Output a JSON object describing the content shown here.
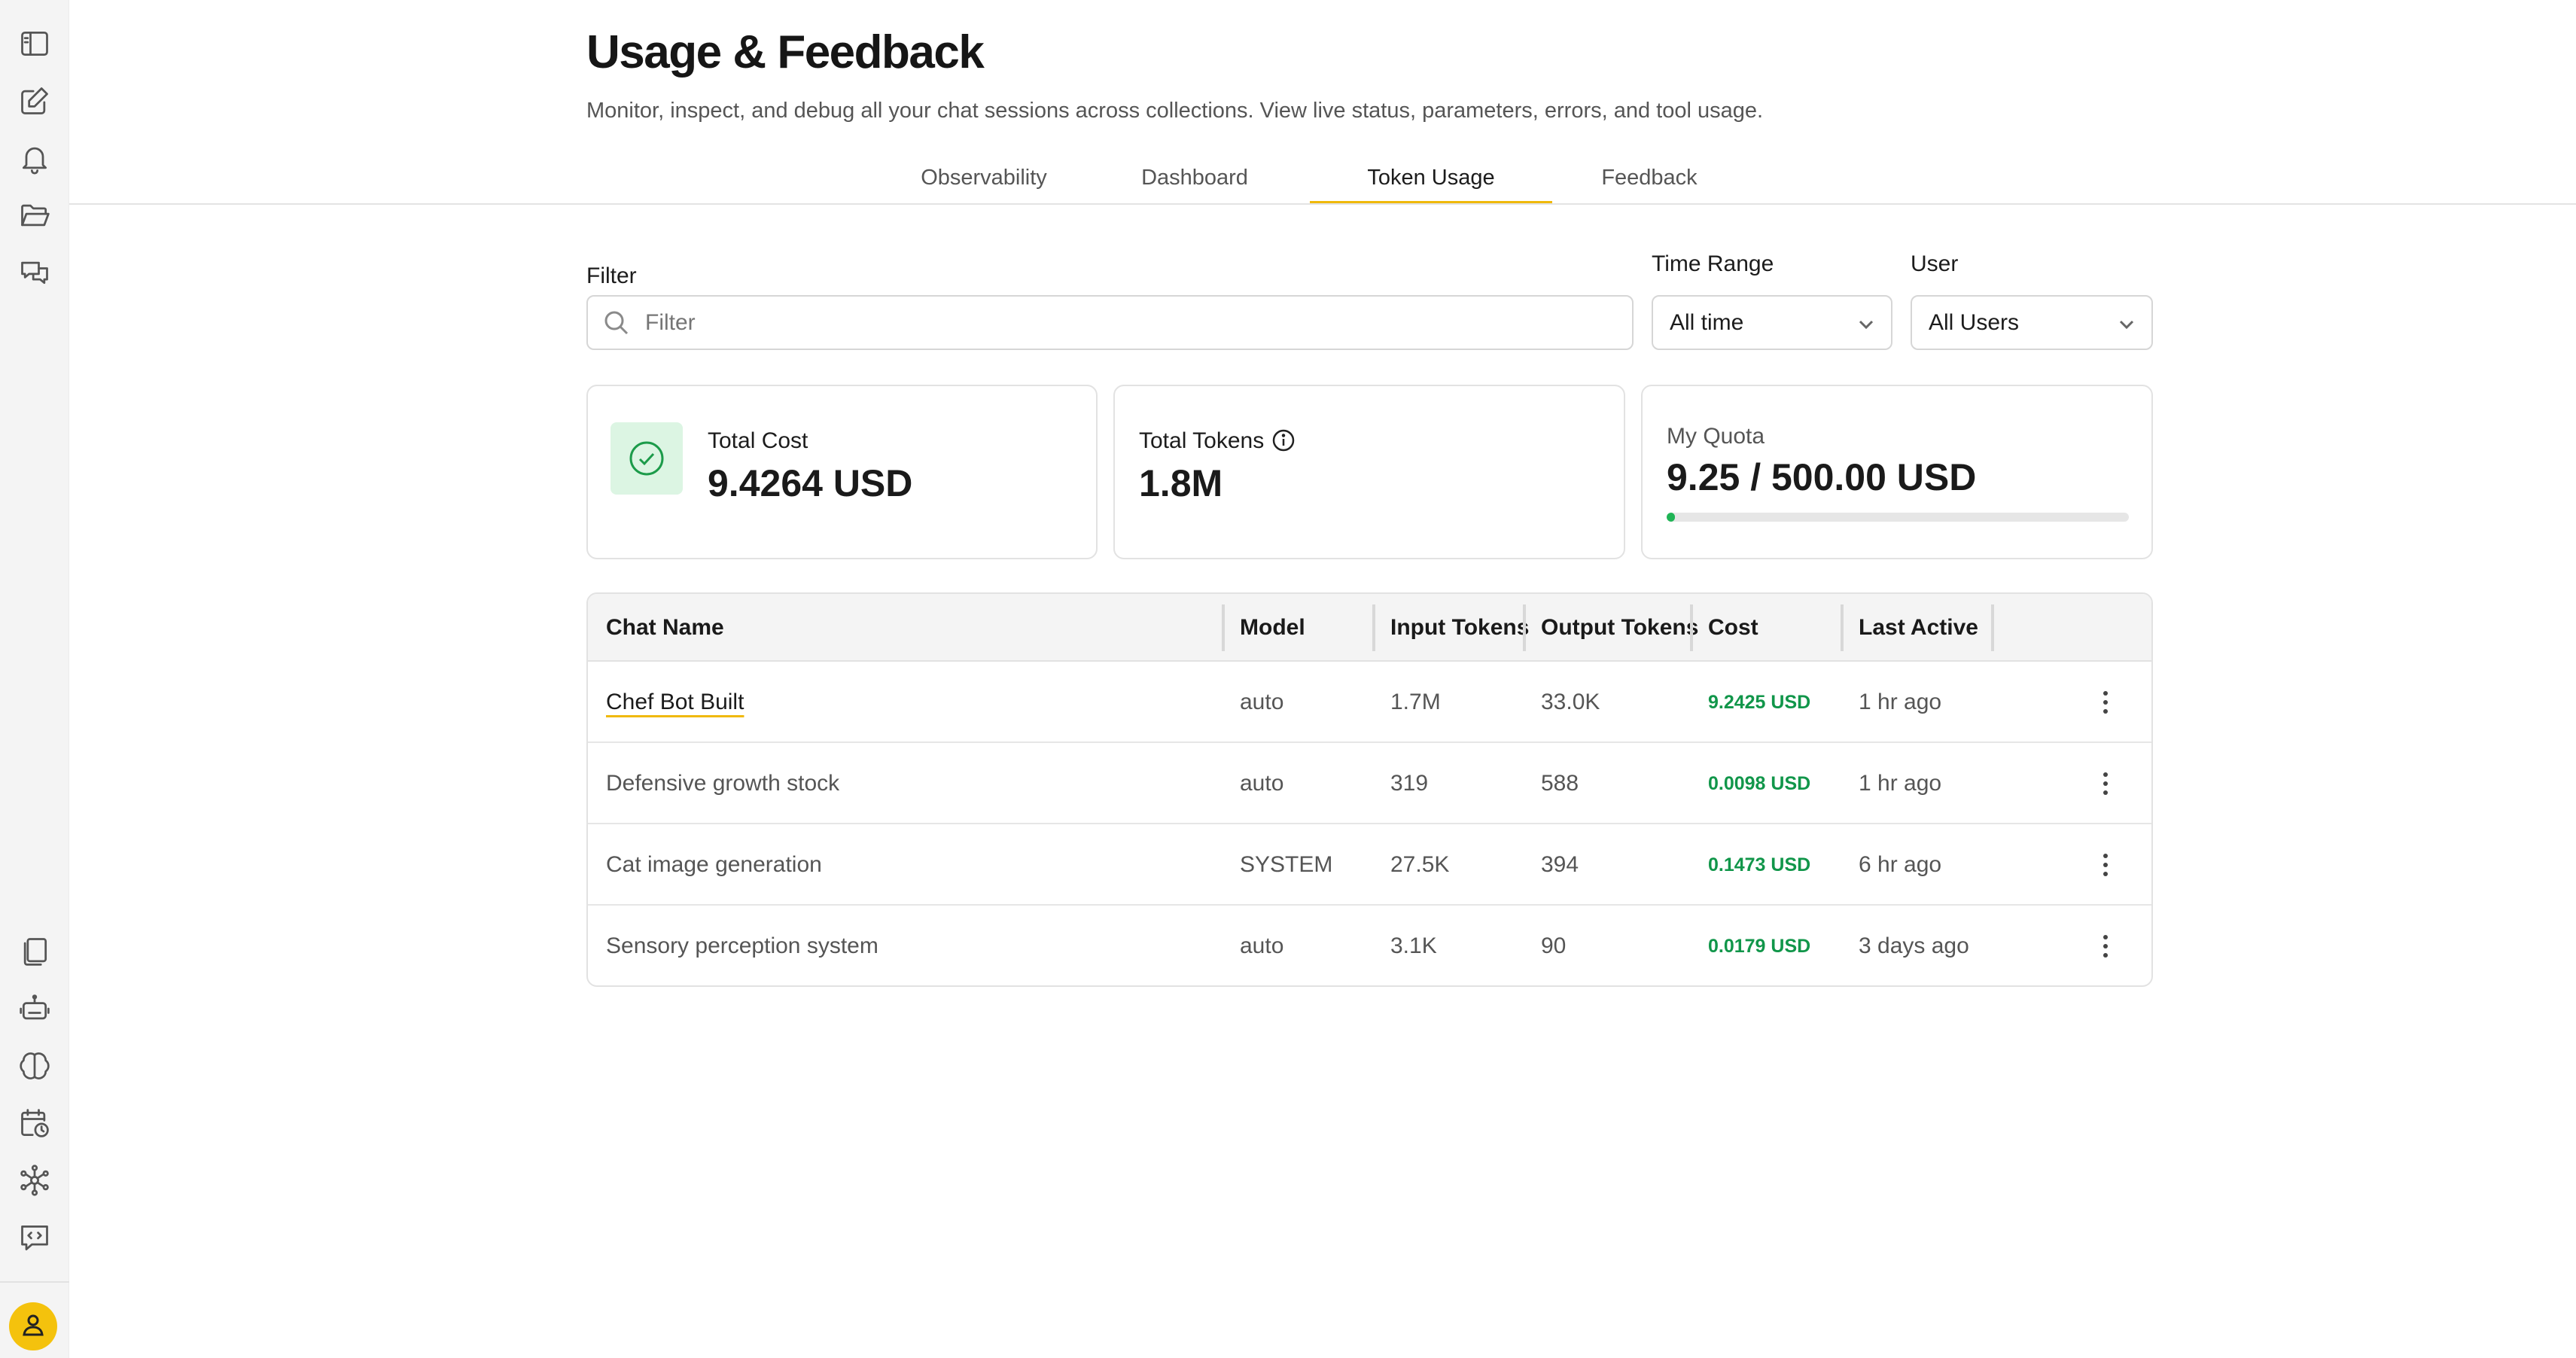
{
  "sidebar": {
    "top_icons": [
      "sidebar-toggle-icon",
      "edit-icon",
      "bell-icon",
      "folder-open-icon",
      "chat-bubbles-icon"
    ],
    "bottom_icons": [
      "documents-icon",
      "robot-icon",
      "brain-icon",
      "calendar-clock-icon",
      "network-icon",
      "code-chat-icon"
    ],
    "avatar_icon": "user-icon"
  },
  "header": {
    "title": "Usage & Feedback",
    "subtitle": "Monitor, inspect, and debug all your chat sessions across collections. View live status, parameters, errors, and tool usage."
  },
  "tabs": [
    {
      "label": "Observability",
      "active": false
    },
    {
      "label": "Dashboard",
      "active": false
    },
    {
      "label": "Token Usage",
      "active": true
    },
    {
      "label": "Feedback",
      "active": false
    }
  ],
  "filters": {
    "filter_label": "Filter",
    "filter_placeholder": "Filter",
    "time_range_label": "Time Range",
    "time_range_value": "All time",
    "user_label": "User",
    "user_value": "All Users"
  },
  "cards": {
    "total_cost_label": "Total Cost",
    "total_cost_value": "9.4264 USD",
    "total_tokens_label": "Total Tokens",
    "total_tokens_value": "1.8M",
    "quota_label": "My Quota",
    "quota_value": "9.25 / 500.00 USD",
    "quota_fraction": 0.0185
  },
  "table": {
    "headers": {
      "chat_name": "Chat Name",
      "model": "Model",
      "input_tokens": "Input Tokens",
      "output_tokens": "Output Tokens",
      "cost": "Cost",
      "last_active": "Last Active"
    },
    "rows": [
      {
        "name": "Chef Bot Built",
        "model": "auto",
        "input": "1.7M",
        "output": "33.0K",
        "cost": "9.2425 USD",
        "last_active": "1 hr ago"
      },
      {
        "name": "Defensive growth stock",
        "model": "auto",
        "input": "319",
        "output": "588",
        "cost": "0.0098 USD",
        "last_active": "1 hr ago"
      },
      {
        "name": "Cat image generation",
        "model": "SYSTEM",
        "input": "27.5K",
        "output": "394",
        "cost": "0.1473 USD",
        "last_active": "6 hr ago"
      },
      {
        "name": "Sensory perception system",
        "model": "auto",
        "input": "3.1K",
        "output": "90",
        "cost": "0.0179 USD",
        "last_active": "3 days ago"
      }
    ]
  },
  "colors": {
    "accent": "#f0b90b",
    "success": "#11964a",
    "avatar": "#f4c20d"
  }
}
